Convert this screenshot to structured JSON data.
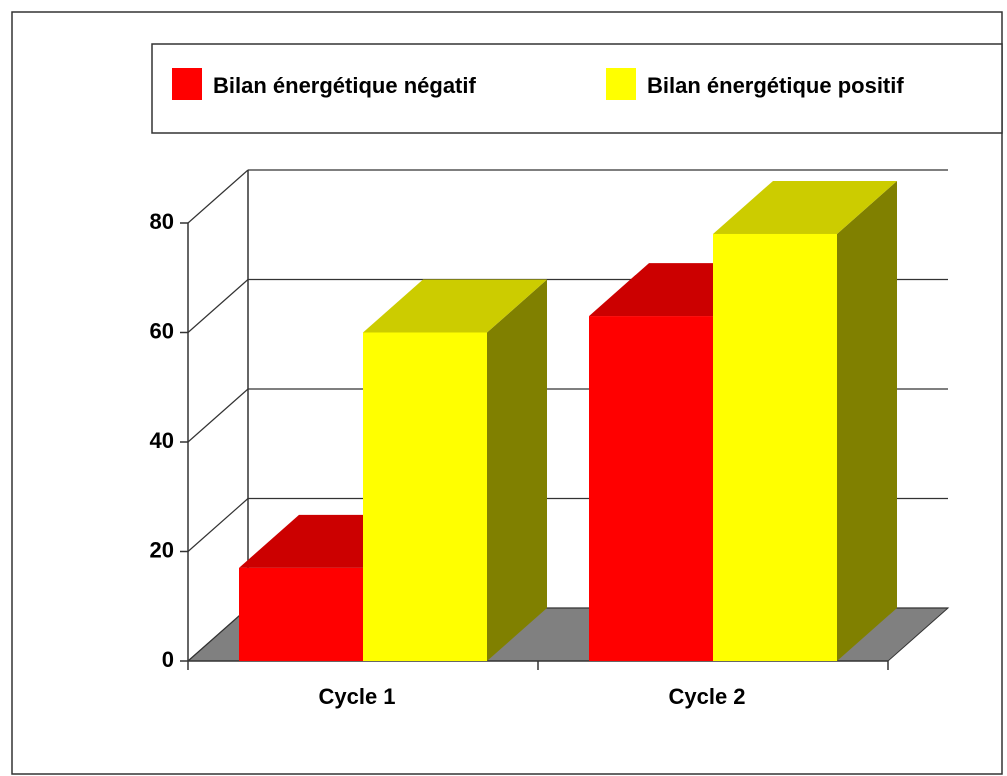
{
  "chart_data": {
    "type": "bar3d",
    "categories": [
      "Cycle 1",
      "Cycle 2"
    ],
    "series": [
      {
        "name": "Bilan énergétique négatif",
        "color": "#ff0000",
        "values": [
          17,
          63
        ]
      },
      {
        "name": "Bilan énergétique positif",
        "color": "#ffff00",
        "values": [
          60,
          78
        ]
      }
    ],
    "ylim": [
      0,
      80
    ],
    "yticks": [
      0,
      20,
      40,
      60,
      80
    ],
    "grid": true,
    "legend": "top"
  }
}
